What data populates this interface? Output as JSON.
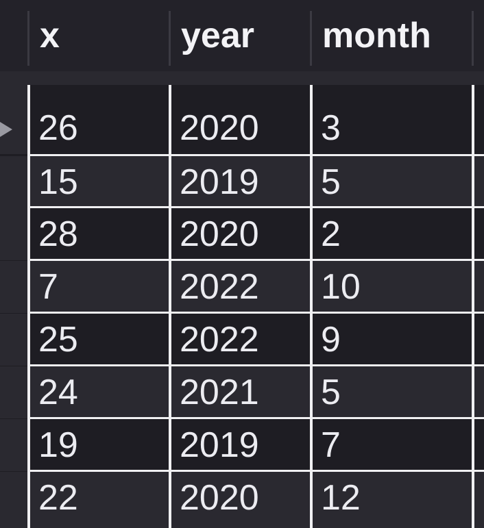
{
  "table": {
    "columns": [
      "x",
      "year",
      "month"
    ],
    "rows": [
      {
        "x": "26",
        "year": "2020",
        "month": "3"
      },
      {
        "x": "15",
        "year": "2019",
        "month": "5"
      },
      {
        "x": "28",
        "year": "2020",
        "month": "2"
      },
      {
        "x": "7",
        "year": "2022",
        "month": "10"
      },
      {
        "x": "25",
        "year": "2022",
        "month": "9"
      },
      {
        "x": "24",
        "year": "2021",
        "month": "5"
      },
      {
        "x": "19",
        "year": "2019",
        "month": "7"
      },
      {
        "x": "22",
        "year": "2020",
        "month": "12"
      }
    ],
    "current_row_indicator": "right-triangle-icon"
  },
  "colors": {
    "background": "#1e1d23",
    "header": "#232229",
    "alt_row": "#2a2930",
    "grid_line": "#f0f0f2",
    "text": "#ececf1"
  }
}
